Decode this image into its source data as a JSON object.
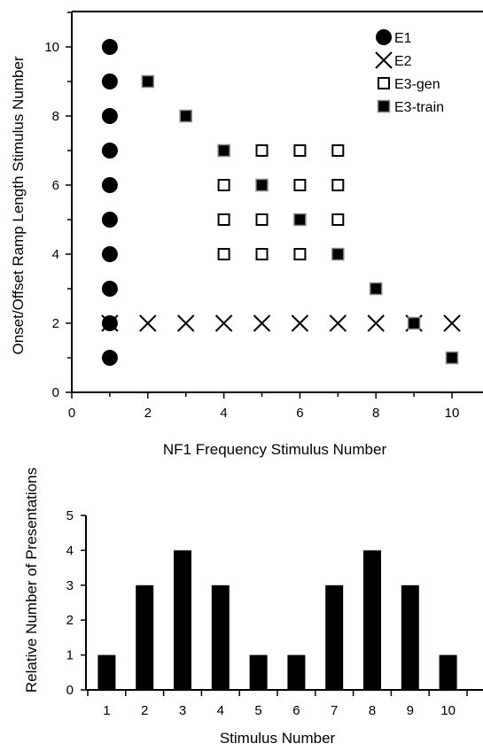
{
  "chart_data": [
    {
      "type": "scatter",
      "xlabel": "NF1 Frequency Stimulus Number",
      "ylabel": "Onset/Offset Ramp Length Stimulus Number",
      "xlim": [
        0,
        10
      ],
      "ylim": [
        0,
        11
      ],
      "xticks": [
        "0",
        "2",
        "4",
        "6",
        "8",
        "10"
      ],
      "yticks": [
        "0",
        "2",
        "4",
        "6",
        "8",
        "10"
      ],
      "grid": false,
      "legend": "top-right",
      "series": [
        {
          "name": "E1",
          "marker": "filled-circle",
          "points": [
            [
              1,
              1
            ],
            [
              1,
              2
            ],
            [
              1,
              3
            ],
            [
              1,
              4
            ],
            [
              1,
              5
            ],
            [
              1,
              6
            ],
            [
              1,
              7
            ],
            [
              1,
              8
            ],
            [
              1,
              9
            ],
            [
              1,
              10
            ]
          ]
        },
        {
          "name": "E2",
          "marker": "x",
          "points": [
            [
              1,
              2
            ],
            [
              2,
              2
            ],
            [
              3,
              2
            ],
            [
              4,
              2
            ],
            [
              5,
              2
            ],
            [
              6,
              2
            ],
            [
              7,
              2
            ],
            [
              8,
              2
            ],
            [
              9,
              2
            ],
            [
              10,
              2
            ]
          ]
        },
        {
          "name": "E3-gen",
          "marker": "open-square",
          "points": [
            [
              5,
              7
            ],
            [
              6,
              7
            ],
            [
              7,
              7
            ],
            [
              4,
              6
            ],
            [
              6,
              6
            ],
            [
              7,
              6
            ],
            [
              4,
              5
            ],
            [
              5,
              5
            ],
            [
              7,
              5
            ],
            [
              4,
              4
            ],
            [
              5,
              4
            ],
            [
              6,
              4
            ]
          ]
        },
        {
          "name": "E3-train",
          "marker": "filled-square",
          "points": [
            [
              2,
              9
            ],
            [
              3,
              8
            ],
            [
              4,
              7
            ],
            [
              5,
              6
            ],
            [
              6,
              5
            ],
            [
              7,
              4
            ],
            [
              8,
              3
            ],
            [
              9,
              2
            ],
            [
              10,
              1
            ]
          ]
        }
      ]
    },
    {
      "type": "bar",
      "xlabel": "Stimulus Number",
      "ylabel": "Relative Number of Presentations",
      "categories": [
        "1",
        "2",
        "3",
        "4",
        "5",
        "6",
        "7",
        "8",
        "9",
        "10"
      ],
      "values": [
        1,
        3,
        4,
        3,
        1,
        1,
        3,
        4,
        3,
        1
      ],
      "ylim": [
        0,
        5
      ],
      "yticks": [
        "0",
        "1",
        "2",
        "3",
        "4",
        "5"
      ],
      "grid": false
    }
  ]
}
